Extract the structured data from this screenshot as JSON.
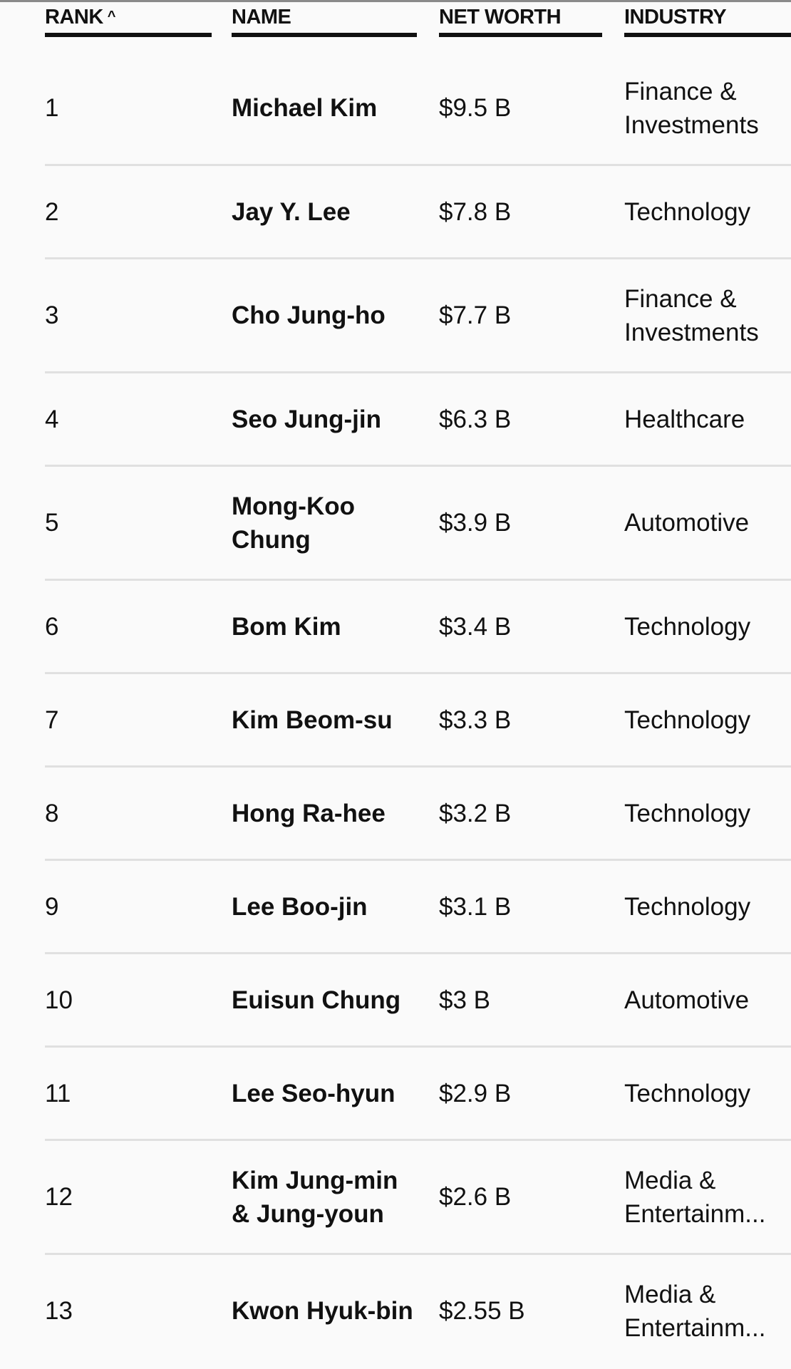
{
  "table": {
    "headers": {
      "rank": "RANK",
      "name": "NAME",
      "net_worth": "NET WORTH",
      "industry": "INDUSTRY"
    },
    "sort": {
      "column": "rank",
      "direction": "ascending",
      "icon": "chevron-up-icon",
      "glyph": "^"
    },
    "rows": [
      {
        "rank": "1",
        "name": "Michael Kim",
        "net_worth": "$9.5 B",
        "industry": "Finance & Investments"
      },
      {
        "rank": "2",
        "name": "Jay Y. Lee",
        "net_worth": "$7.8 B",
        "industry": "Technology"
      },
      {
        "rank": "3",
        "name": "Cho Jung-ho",
        "net_worth": "$7.7 B",
        "industry": "Finance & Investments"
      },
      {
        "rank": "4",
        "name": "Seo Jung-jin",
        "net_worth": "$6.3 B",
        "industry": "Healthcare"
      },
      {
        "rank": "5",
        "name": "Mong-Koo Chung",
        "net_worth": "$3.9 B",
        "industry": "Automotive"
      },
      {
        "rank": "6",
        "name": "Bom Kim",
        "net_worth": "$3.4 B",
        "industry": "Technology"
      },
      {
        "rank": "7",
        "name": "Kim Beom-su",
        "net_worth": "$3.3 B",
        "industry": "Technology"
      },
      {
        "rank": "8",
        "name": "Hong Ra-hee",
        "net_worth": "$3.2 B",
        "industry": "Technology"
      },
      {
        "rank": "9",
        "name": "Lee Boo-jin",
        "net_worth": "$3.1 B",
        "industry": "Technology"
      },
      {
        "rank": "10",
        "name": "Euisun Chung",
        "net_worth": "$3 B",
        "industry": "Automotive"
      },
      {
        "rank": "11",
        "name": "Lee Seo-hyun",
        "net_worth": "$2.9 B",
        "industry": "Technology"
      },
      {
        "rank": "12",
        "name": "Kim Jung-min & Jung-youn",
        "net_worth": "$2.6 B",
        "industry": "Media & Entertainm..."
      },
      {
        "rank": "13",
        "name": "Kwon Hyuk-bin",
        "net_worth": "$2.55 B",
        "industry": "Media & Entertainm..."
      }
    ]
  }
}
